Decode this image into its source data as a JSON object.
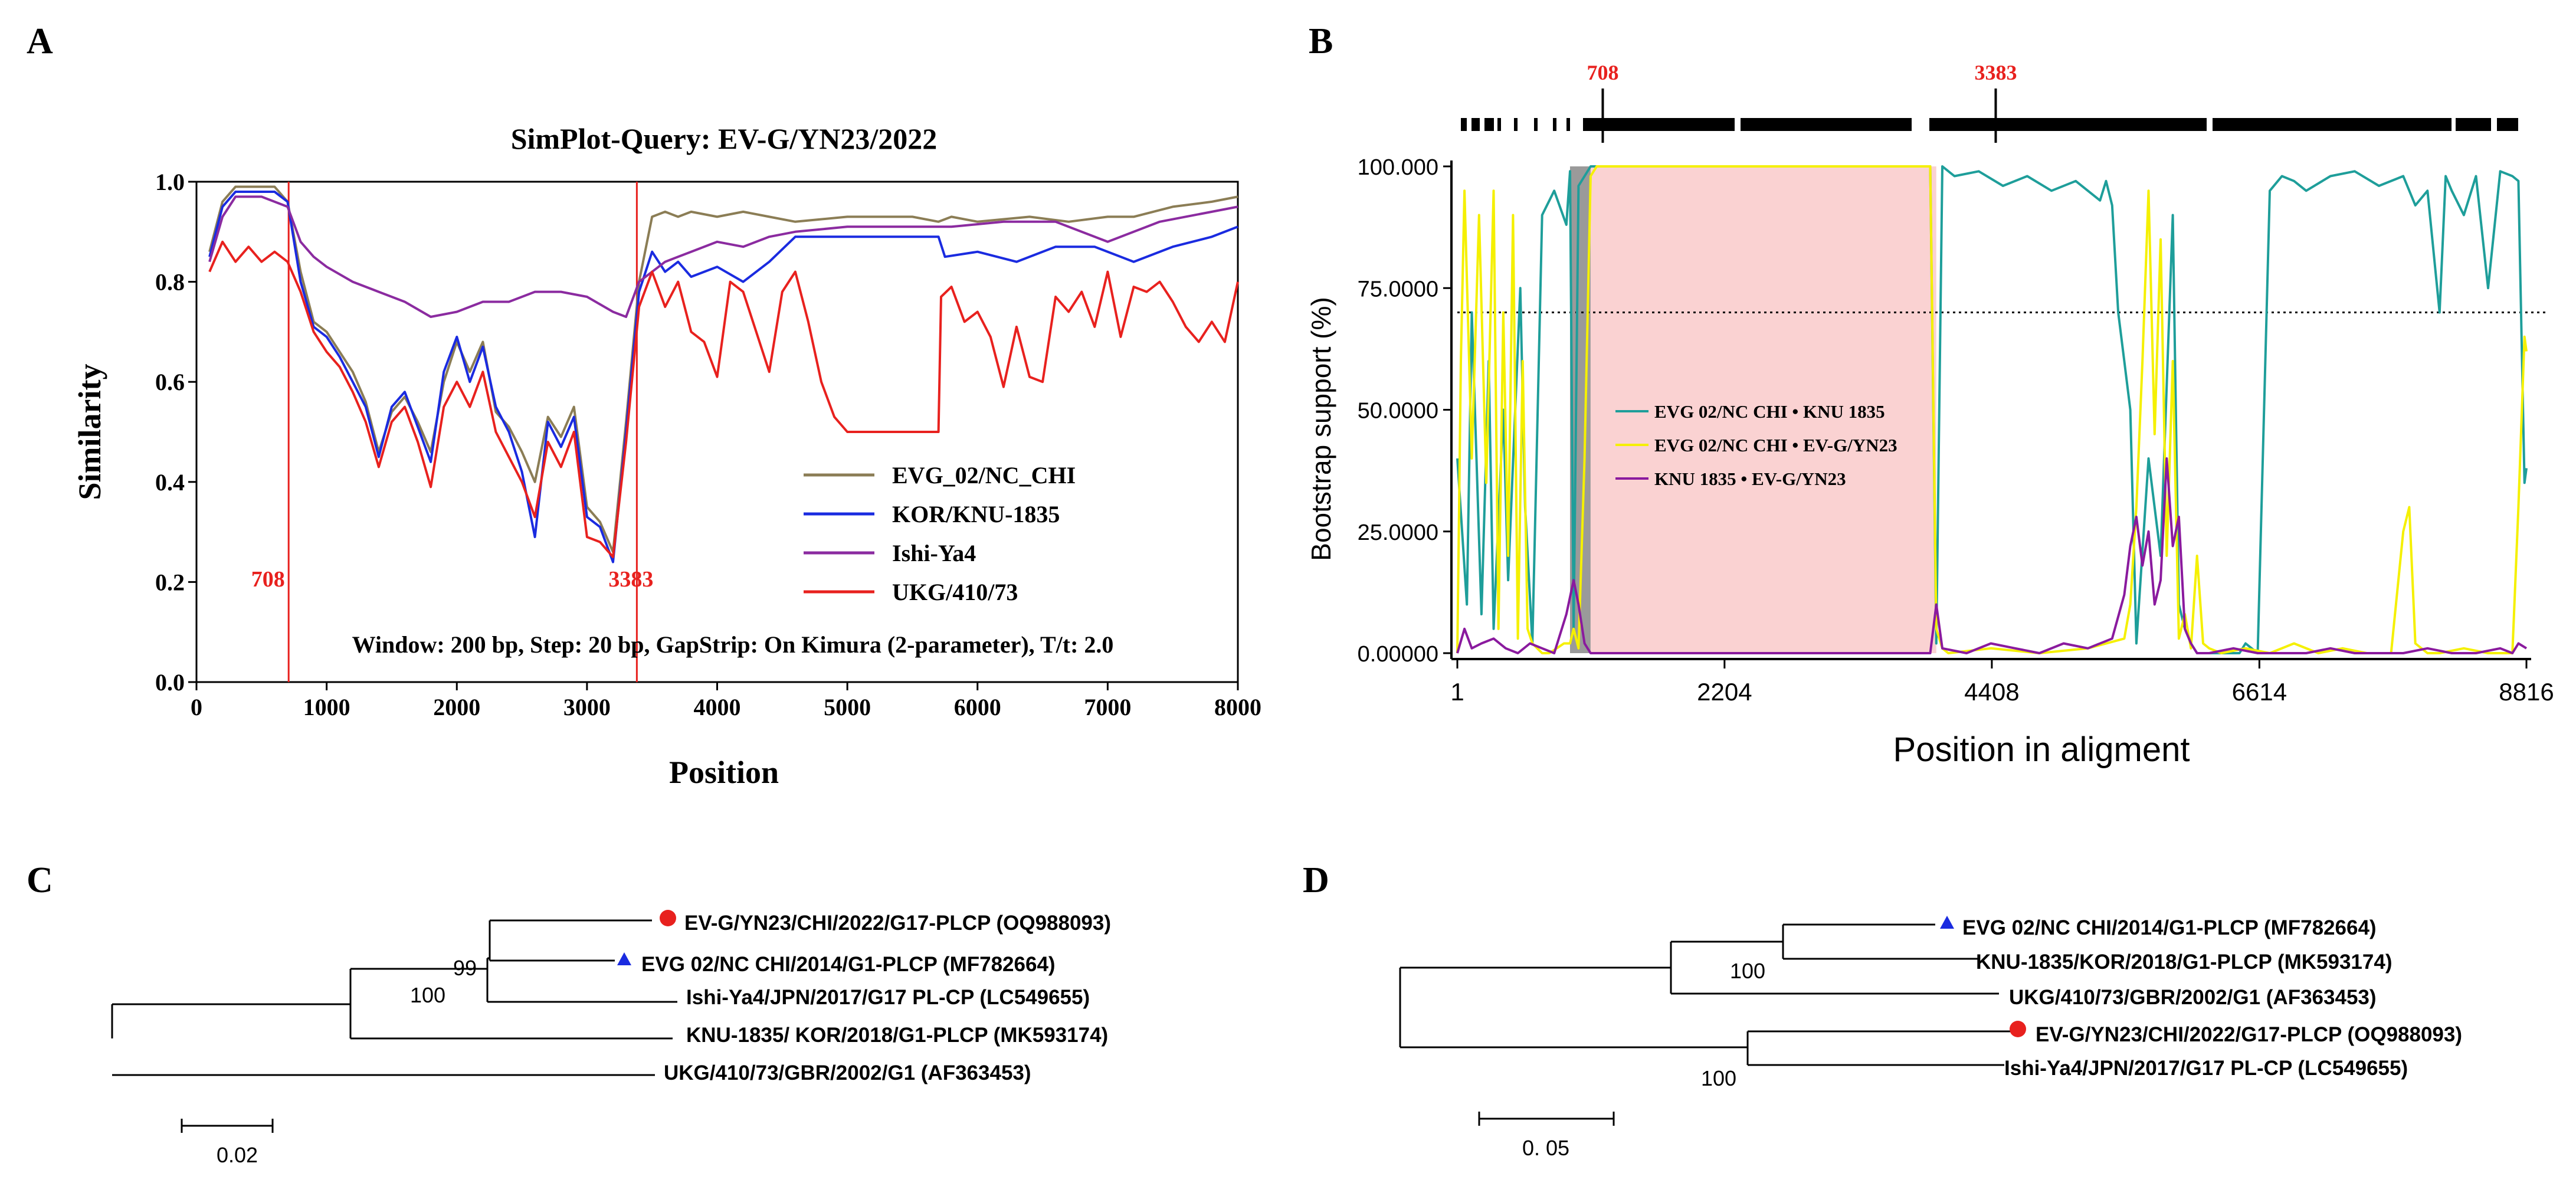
{
  "panels": {
    "A": {
      "letter": "A"
    },
    "B": {
      "letter": "B"
    },
    "C": {
      "letter": "C"
    },
    "D": {
      "letter": "D"
    }
  },
  "colors": {
    "evg": "#8B7D55",
    "kor": "#1A2BE0",
    "ishi": "#8B2BA0",
    "ukg": "#E8211E",
    "breakpoint": "#E8211E",
    "teal": "#1E9E9A",
    "yellow": "#F5F000",
    "purple": "#8A1A9E",
    "pink": "#FAD2D2",
    "gray": "#9A9A9A",
    "dot_red": "#E8211E",
    "tri_blue": "#1A2BE0"
  },
  "chart_data": [
    {
      "id": "A",
      "type": "line",
      "title": "SimPlot-Query: EV-G/YN23/2022",
      "xlabel": "Position",
      "ylabel": "Similarity",
      "xlim": [
        0,
        8000
      ],
      "ylim": [
        0.0,
        1.0
      ],
      "xticks": [
        0,
        1000,
        2000,
        3000,
        4000,
        5000,
        6000,
        7000,
        8000
      ],
      "xtick_labels": [
        "0",
        "1000",
        "2000",
        "3000",
        "4000",
        "5000",
        "6000",
        "7000",
        "8000"
      ],
      "yticks": [
        0.0,
        0.2,
        0.4,
        0.6,
        0.8,
        1.0
      ],
      "ytick_labels": [
        "0.0",
        "0.2",
        "0.4",
        "0.6",
        "0.8",
        "1.0"
      ],
      "breakpoints": [
        {
          "x": 708,
          "label": "708"
        },
        {
          "x": 3383,
          "label": "3383"
        }
      ],
      "annotation": "Window: 200 bp, Step: 20 bp, GapStrip: On Kimura (2-parameter), T/t: 2.0",
      "legend": [
        "EVG_02/NC_CHI",
        "KOR/KNU-1835",
        "Ishi-Ya4",
        "UKG/410/73"
      ],
      "series": [
        {
          "name": "EVG_02/NC_CHI",
          "color_key": "evg",
          "x": [
            100,
            200,
            300,
            400,
            500,
            600,
            700,
            800,
            900,
            1000,
            1100,
            1200,
            1300,
            1400,
            1500,
            1600,
            1700,
            1800,
            1900,
            2000,
            2100,
            2200,
            2300,
            2400,
            2500,
            2600,
            2700,
            2800,
            2900,
            3000,
            3100,
            3200,
            3300,
            3400,
            3500,
            3600,
            3700,
            3800,
            4000,
            4200,
            4400,
            4600,
            5000,
            5500,
            5700,
            5800,
            6000,
            6400,
            6700,
            7000,
            7200,
            7500,
            7800,
            8000
          ],
          "y": [
            0.86,
            0.96,
            0.99,
            0.99,
            0.99,
            0.99,
            0.96,
            0.82,
            0.72,
            0.7,
            0.66,
            0.62,
            0.56,
            0.46,
            0.54,
            0.57,
            0.52,
            0.46,
            0.6,
            0.68,
            0.62,
            0.68,
            0.54,
            0.51,
            0.46,
            0.4,
            0.53,
            0.49,
            0.55,
            0.35,
            0.32,
            0.26,
            0.52,
            0.8,
            0.93,
            0.94,
            0.93,
            0.94,
            0.93,
            0.94,
            0.93,
            0.92,
            0.93,
            0.93,
            0.92,
            0.93,
            0.92,
            0.93,
            0.92,
            0.93,
            0.93,
            0.95,
            0.96,
            0.97
          ]
        },
        {
          "name": "KOR/KNU-1835",
          "color_key": "kor",
          "x": [
            100,
            200,
            300,
            400,
            500,
            600,
            700,
            800,
            900,
            1000,
            1100,
            1200,
            1300,
            1400,
            1500,
            1600,
            1700,
            1800,
            1900,
            2000,
            2100,
            2200,
            2300,
            2400,
            2500,
            2600,
            2700,
            2800,
            2900,
            3000,
            3100,
            3200,
            3300,
            3400,
            3500,
            3600,
            3700,
            3800,
            4000,
            4200,
            4400,
            4600,
            5000,
            5700,
            5750,
            6000,
            6300,
            6600,
            6900,
            7200,
            7500,
            7800,
            8000
          ],
          "y": [
            0.85,
            0.95,
            0.98,
            0.98,
            0.98,
            0.98,
            0.96,
            0.8,
            0.71,
            0.69,
            0.65,
            0.6,
            0.55,
            0.45,
            0.55,
            0.58,
            0.51,
            0.44,
            0.62,
            0.69,
            0.6,
            0.67,
            0.55,
            0.5,
            0.42,
            0.29,
            0.52,
            0.47,
            0.53,
            0.33,
            0.31,
            0.24,
            0.5,
            0.78,
            0.86,
            0.82,
            0.84,
            0.81,
            0.83,
            0.8,
            0.84,
            0.89,
            0.89,
            0.89,
            0.85,
            0.86,
            0.84,
            0.87,
            0.87,
            0.84,
            0.87,
            0.89,
            0.91
          ]
        },
        {
          "name": "Ishi-Ya4",
          "color_key": "ishi",
          "x": [
            100,
            200,
            300,
            400,
            500,
            600,
            700,
            800,
            900,
            1000,
            1200,
            1400,
            1600,
            1800,
            2000,
            2200,
            2400,
            2600,
            2800,
            3000,
            3200,
            3300,
            3400,
            3600,
            3800,
            4000,
            4200,
            4400,
            4600,
            5000,
            5400,
            5800,
            6200,
            6600,
            7000,
            7400,
            7800,
            8000
          ],
          "y": [
            0.84,
            0.93,
            0.97,
            0.97,
            0.97,
            0.96,
            0.95,
            0.88,
            0.85,
            0.83,
            0.8,
            0.78,
            0.76,
            0.73,
            0.74,
            0.76,
            0.76,
            0.78,
            0.78,
            0.77,
            0.74,
            0.73,
            0.8,
            0.84,
            0.86,
            0.88,
            0.87,
            0.89,
            0.9,
            0.91,
            0.91,
            0.91,
            0.92,
            0.92,
            0.88,
            0.92,
            0.94,
            0.95
          ]
        },
        {
          "name": "UKG/410/73",
          "color_key": "ukg",
          "x": [
            100,
            200,
            300,
            400,
            500,
            600,
            700,
            800,
            900,
            1000,
            1100,
            1200,
            1300,
            1400,
            1500,
            1600,
            1700,
            1800,
            1900,
            2000,
            2100,
            2200,
            2300,
            2400,
            2500,
            2600,
            2700,
            2800,
            2900,
            3000,
            3100,
            3200,
            3300,
            3400,
            3500,
            3600,
            3700,
            3800,
            3900,
            4000,
            4100,
            4200,
            4300,
            4400,
            4500,
            4600,
            4700,
            4800,
            4900,
            5000,
            5700,
            5720,
            5800,
            5900,
            6000,
            6100,
            6200,
            6300,
            6400,
            6500,
            6600,
            6700,
            6800,
            6900,
            7000,
            7100,
            7200,
            7300,
            7400,
            7500,
            7600,
            7700,
            7800,
            7900,
            8000
          ],
          "y": [
            0.82,
            0.88,
            0.84,
            0.87,
            0.84,
            0.86,
            0.84,
            0.78,
            0.7,
            0.66,
            0.63,
            0.58,
            0.52,
            0.43,
            0.52,
            0.55,
            0.48,
            0.39,
            0.55,
            0.6,
            0.55,
            0.62,
            0.5,
            0.45,
            0.4,
            0.33,
            0.48,
            0.43,
            0.5,
            0.29,
            0.28,
            0.25,
            0.48,
            0.75,
            0.82,
            0.75,
            0.8,
            0.7,
            0.68,
            0.61,
            0.8,
            0.78,
            0.7,
            0.62,
            0.78,
            0.82,
            0.72,
            0.6,
            0.53,
            0.5,
            0.5,
            0.77,
            0.79,
            0.72,
            0.74,
            0.69,
            0.59,
            0.71,
            0.61,
            0.6,
            0.77,
            0.74,
            0.78,
            0.71,
            0.82,
            0.69,
            0.79,
            0.78,
            0.8,
            0.76,
            0.71,
            0.68,
            0.72,
            0.68,
            0.8
          ]
        }
      ]
    },
    {
      "id": "B",
      "type": "line",
      "title": "",
      "xlabel": "Position in aligment",
      "ylabel": "Bootstrap support (%)",
      "xlim": [
        1,
        8816
      ],
      "ylim": [
        0,
        100
      ],
      "xticks": [
        1,
        2204,
        4408,
        6614,
        8816
      ],
      "xtick_labels": [
        "1",
        "2204",
        "4408",
        "6614",
        "8816"
      ],
      "yticks": [
        0,
        25,
        50,
        75,
        100
      ],
      "ytick_labels": [
        "0.00000",
        "25.0000",
        "50.0000",
        "75.0000",
        "100.000"
      ],
      "threshold": 70,
      "breakpoints": [
        {
          "x": 1200,
          "label": "708"
        },
        {
          "x": 4440,
          "label": "3383"
        }
      ],
      "shaded_regions": [
        {
          "from": 930,
          "to": 1100,
          "color_key": "gray"
        },
        {
          "from": 1100,
          "to": 3950,
          "color_key": "pink"
        }
      ],
      "legend": [
        "EVG 02/NC CHI • KNU 1835",
        "EVG 02/NC CHI • EV-G/YN23",
        "KNU 1835 • EV-G/YN23"
      ],
      "series": [
        {
          "name": "EVG 02/NC CHI • KNU 1835",
          "color_key": "teal",
          "x": [
            1,
            80,
            120,
            200,
            260,
            300,
            380,
            420,
            520,
            560,
            620,
            700,
            800,
            900,
            930,
            960,
            1000,
            1100,
            1200,
            3900,
            3950,
            4000,
            4100,
            4300,
            4500,
            4700,
            4900,
            5100,
            5200,
            5300,
            5350,
            5400,
            5450,
            5500,
            5550,
            5600,
            5700,
            5800,
            5900,
            5950,
            6000,
            6050,
            6100,
            6200,
            6300,
            6400,
            6450,
            6500,
            6600,
            6700,
            6800,
            6900,
            7000,
            7200,
            7400,
            7600,
            7800,
            7900,
            8000,
            8100,
            8150,
            8200,
            8300,
            8400,
            8500,
            8600,
            8700,
            8750,
            8800,
            8816
          ],
          "y": [
            40,
            10,
            70,
            8,
            60,
            5,
            50,
            15,
            75,
            30,
            2,
            90,
            95,
            88,
            99,
            5,
            96,
            100,
            100,
            100,
            2,
            100,
            98,
            99,
            96,
            98,
            95,
            97,
            95,
            93,
            97,
            92,
            70,
            60,
            50,
            2,
            40,
            20,
            90,
            10,
            5,
            2,
            0,
            0,
            0,
            0,
            0,
            2,
            0,
            95,
            98,
            97,
            95,
            98,
            99,
            96,
            98,
            92,
            95,
            70,
            98,
            95,
            90,
            98,
            75,
            99,
            98,
            97,
            35,
            38
          ]
        },
        {
          "name": "EVG 02/NC CHI • EV-G/YN23",
          "color_key": "yellow",
          "x": [
            1,
            30,
            60,
            120,
            180,
            240,
            300,
            340,
            380,
            420,
            460,
            500,
            540,
            580,
            620,
            660,
            700,
            760,
            820,
            880,
            930,
            960,
            1000,
            1050,
            1100,
            1150,
            1200,
            3900,
            3950,
            4000,
            4050,
            4400,
            4800,
            5200,
            5500,
            5550,
            5600,
            5650,
            5700,
            5750,
            5800,
            5850,
            5900,
            5950,
            6000,
            6050,
            6100,
            6150,
            6200,
            6300,
            6500,
            6700,
            6900,
            7100,
            7300,
            7500,
            7700,
            7800,
            7850,
            7900,
            8000,
            8100,
            8300,
            8500,
            8700,
            8750,
            8800,
            8816
          ],
          "y": [
            0,
            60,
            95,
            40,
            90,
            35,
            95,
            5,
            70,
            20,
            90,
            3,
            60,
            5,
            2,
            1,
            0,
            0,
            1,
            2,
            2,
            5,
            1,
            40,
            98,
            100,
            100,
            100,
            5,
            1,
            0,
            1,
            0,
            1,
            3,
            10,
            30,
            60,
            95,
            45,
            85,
            20,
            60,
            3,
            8,
            1,
            20,
            2,
            1,
            0,
            1,
            0,
            2,
            0,
            1,
            0,
            0,
            25,
            30,
            2,
            0,
            0,
            1,
            0,
            0,
            30,
            65,
            62
          ]
        },
        {
          "name": "KNU 1835 • EV-G/YN23",
          "color_key": "purple",
          "x": [
            1,
            60,
            120,
            200,
            300,
            400,
            500,
            600,
            700,
            800,
            900,
            960,
            1000,
            1050,
            1100,
            1200,
            3900,
            3950,
            4000,
            4200,
            4400,
            4600,
            4800,
            5000,
            5200,
            5400,
            5500,
            5550,
            5600,
            5650,
            5700,
            5750,
            5800,
            5850,
            5900,
            5950,
            6000,
            6050,
            6100,
            6200,
            6400,
            6600,
            6800,
            7000,
            7200,
            7400,
            7600,
            7800,
            8000,
            8200,
            8400,
            8600,
            8700,
            8750,
            8816
          ],
          "y": [
            0,
            5,
            1,
            2,
            3,
            1,
            0,
            2,
            1,
            0,
            8,
            15,
            10,
            2,
            0,
            0,
            0,
            10,
            1,
            0,
            2,
            1,
            0,
            2,
            1,
            3,
            12,
            22,
            28,
            18,
            25,
            10,
            15,
            40,
            22,
            28,
            5,
            2,
            0,
            0,
            1,
            0,
            0,
            0,
            1,
            0,
            0,
            0,
            1,
            0,
            0,
            1,
            0,
            2,
            1
          ]
        }
      ]
    }
  ],
  "trees": {
    "C": {
      "taxa": [
        {
          "label": "EV-G/YN23/CHI/2022/G17-PLCP  (OQ988093)",
          "marker": "dot"
        },
        {
          "label": "EVG 02/NC CHI/2014/G1-PLCP  (MF782664)",
          "marker": "triangle"
        },
        {
          "label": "Ishi-Ya4/JPN/2017/G17  PL-CP  (LC549655)",
          "marker": ""
        },
        {
          "label": "KNU-1835/ KOR/2018/G1-PLCP  (MK593174)",
          "marker": ""
        },
        {
          "label": "UKG/410/73/GBR/2002/G1  (AF363453)",
          "marker": ""
        }
      ],
      "bootstraps": [
        "99",
        "100"
      ],
      "scale_label": "0.02"
    },
    "D": {
      "taxa": [
        {
          "label": "EVG 02/NC CHI/2014/G1-PLCP  (MF782664)",
          "marker": "triangle"
        },
        {
          "label": "KNU-1835/KOR/2018/G1-PLCP  (MK593174)",
          "marker": ""
        },
        {
          "label": "UKG/410/73/GBR/2002/G1  (AF363453)",
          "marker": ""
        },
        {
          "label": "EV-G/YN23/CHI/2022/G17-PLCP  (OQ988093)",
          "marker": "dot"
        },
        {
          "label": "Ishi-Ya4/JPN/2017/G17  PL-CP (LC549655)",
          "marker": ""
        }
      ],
      "bootstraps": [
        "100",
        "100"
      ],
      "scale_label": "0. 05"
    }
  }
}
